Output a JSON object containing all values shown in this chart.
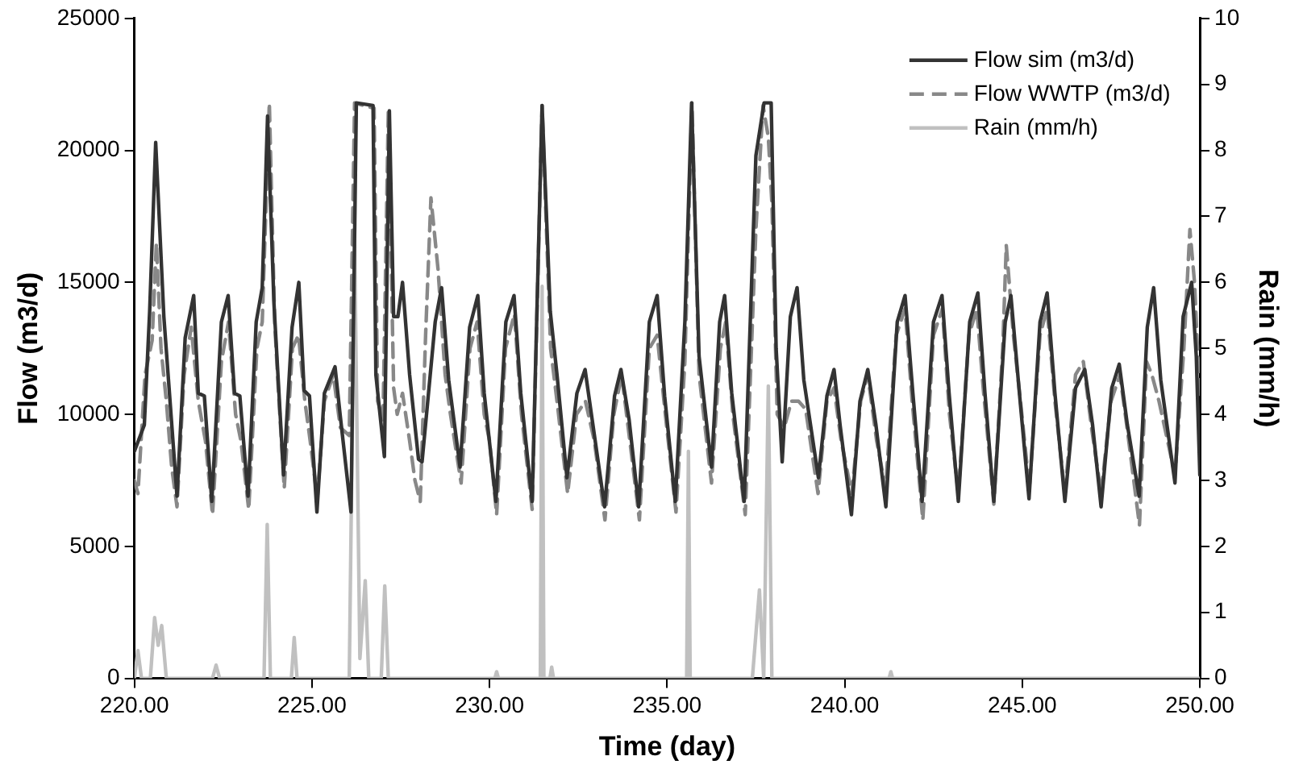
{
  "chart_data": {
    "type": "line",
    "xlabel": "Time (day)",
    "ylabel": "Flow (m3/d)",
    "y2label": "Rain (mm/h)",
    "xlim": [
      220,
      250
    ],
    "xticks": [
      {
        "value": 220,
        "label": "220.00"
      },
      {
        "value": 225,
        "label": "225.00"
      },
      {
        "value": 230,
        "label": "230.00"
      },
      {
        "value": 235,
        "label": "235.00"
      },
      {
        "value": 240,
        "label": "240.00"
      },
      {
        "value": 245,
        "label": "245.00"
      },
      {
        "value": 250,
        "label": "250.00"
      }
    ],
    "ylim": [
      0,
      25000
    ],
    "yticks": [
      0,
      5000,
      10000,
      15000,
      20000,
      25000
    ],
    "y2lim": [
      0,
      10
    ],
    "y2ticks": [
      0,
      1,
      2,
      3,
      4,
      5,
      6,
      7,
      8,
      9,
      10
    ],
    "grid": false,
    "legend": "top right",
    "marker": "none",
    "series": [
      {
        "name": "Flow sim (m3/d)",
        "color": "#333333",
        "line_style": "solid",
        "x": [
          220,
          220.28,
          220.43,
          220.6,
          220.83,
          221.2,
          221.43,
          221.67,
          221.8,
          221.97,
          222.18,
          222.45,
          222.64,
          222.82,
          222.97,
          223.2,
          223.43,
          223.6,
          223.75,
          223.93,
          224.2,
          224.44,
          224.63,
          224.78,
          224.93,
          225.14,
          225.35,
          225.65,
          225.8,
          226.1,
          226.25,
          226.72,
          226.8,
          227.04,
          227.18,
          227.3,
          227.42,
          227.55,
          227.75,
          228,
          228.1,
          228.47,
          228.65,
          228.85,
          229.17,
          229.44,
          229.67,
          229.85,
          230.18,
          230.46,
          230.69,
          230.88,
          231.2,
          231.48,
          231.71,
          231.9,
          232.18,
          232.46,
          232.69,
          232.89,
          233.24,
          233.52,
          233.7,
          233.93,
          234.2,
          234.5,
          234.72,
          234.93,
          235.23,
          235.5,
          235.69,
          235.9,
          236.25,
          236.48,
          236.62,
          236.82,
          237.17,
          237.5,
          237.73,
          237.93,
          238.07,
          238.24,
          238.47,
          238.66,
          238.85,
          239.26,
          239.5,
          239.7,
          239.87,
          240.19,
          240.43,
          240.65,
          240.88,
          241.16,
          241.48,
          241.7,
          241.92,
          242.18,
          242.5,
          242.74,
          242.94,
          243.2,
          243.52,
          243.75,
          243.95,
          244.2,
          244.52,
          244.68,
          244.92,
          245.19,
          245.5,
          245.7,
          245.92,
          246.2,
          246.5,
          246.76,
          246.98,
          247.22,
          247.52,
          247.73,
          247.96,
          248.29,
          248.52,
          248.7,
          248.9,
          249.3,
          249.53,
          249.77,
          249.9,
          250
        ],
        "values": [
          8600,
          9600,
          13900,
          20300,
          13700,
          6900,
          12900,
          14500,
          10800,
          10700,
          6700,
          13500,
          14500,
          10800,
          10700,
          6900,
          13500,
          14800,
          21300,
          14200,
          7700,
          13300,
          15000,
          10900,
          10700,
          6300,
          10800,
          11800,
          9900,
          6300,
          21800,
          21700,
          11500,
          8400,
          21500,
          13700,
          13700,
          15000,
          11500,
          8300,
          8200,
          13500,
          14800,
          11300,
          8000,
          13300,
          14500,
          10800,
          6700,
          13500,
          14500,
          10800,
          6700,
          21700,
          13900,
          11500,
          7600,
          10800,
          11700,
          9800,
          6500,
          10700,
          11700,
          9800,
          6500,
          13500,
          14500,
          10700,
          6700,
          13500,
          21800,
          12200,
          8000,
          13500,
          14500,
          10800,
          6700,
          19800,
          21800,
          21800,
          12500,
          8200,
          13700,
          14800,
          11300,
          7600,
          10700,
          11700,
          9600,
          6200,
          10500,
          11700,
          9600,
          6500,
          13500,
          14500,
          10800,
          6700,
          13500,
          14500,
          10800,
          6700,
          13500,
          14600,
          10800,
          6700,
          13500,
          14500,
          10800,
          6800,
          13500,
          14600,
          10800,
          6700,
          11000,
          11700,
          9600,
          6500,
          11000,
          11900,
          9600,
          6900,
          13300,
          14800,
          11300,
          7400,
          13700,
          15000,
          12200,
          7700
        ]
      },
      {
        "name": "Flow WWTP (m3/d)",
        "color": "#888888",
        "line_style": "dashed",
        "x": [
          220,
          220.1,
          220.3,
          220.5,
          220.62,
          220.75,
          220.9,
          221.05,
          221.2,
          221.4,
          221.6,
          221.8,
          222,
          222.2,
          222.45,
          222.65,
          222.85,
          223,
          223.22,
          223.45,
          223.6,
          223.8,
          223.95,
          224.05,
          224.22,
          224.45,
          224.62,
          224.8,
          224.95,
          225.15,
          225.35,
          225.6,
          225.8,
          226.05,
          226.2,
          226.45,
          226.75,
          226.85,
          227,
          227.15,
          227.3,
          227.4,
          227.55,
          227.75,
          227.9,
          228.05,
          228.2,
          228.35,
          228.55,
          228.75,
          228.9,
          229.2,
          229.45,
          229.65,
          229.85,
          230,
          230.2,
          230.45,
          230.7,
          230.9,
          231.2,
          231.48,
          231.72,
          231.9,
          232.2,
          232.45,
          232.7,
          232.95,
          233.25,
          233.5,
          233.72,
          233.95,
          234.22,
          234.5,
          234.72,
          234.95,
          235.25,
          235.5,
          235.7,
          235.9,
          236.25,
          236.5,
          236.65,
          236.85,
          237.2,
          237.5,
          237.7,
          237.85,
          237.95,
          238.1,
          238.3,
          238.5,
          238.7,
          238.9,
          239.25,
          239.5,
          239.7,
          239.9,
          240.2,
          240.45,
          240.65,
          240.9,
          241.15,
          241.45,
          241.7,
          241.9,
          242.2,
          242.5,
          242.75,
          242.95,
          243.2,
          243.5,
          243.72,
          243.9,
          244.2,
          244.45,
          244.55,
          244.75,
          244.95,
          245.2,
          245.5,
          245.7,
          245.92,
          246.2,
          246.5,
          246.72,
          246.95,
          247.22,
          247.5,
          247.75,
          247.95,
          248.3,
          248.5,
          248.65,
          248.85,
          249.3,
          249.55,
          249.72,
          249.85,
          250
        ],
        "values": [
          7500,
          7000,
          11500,
          12800,
          16500,
          12500,
          10500,
          8000,
          6500,
          11500,
          13300,
          10500,
          9000,
          6200,
          12000,
          13500,
          10000,
          9000,
          6400,
          12500,
          13500,
          21800,
          13500,
          11000,
          7200,
          12500,
          13000,
          10500,
          9000,
          6800,
          10500,
          11500,
          9500,
          9200,
          21800,
          21700,
          21600,
          10500,
          9800,
          21500,
          11000,
          10000,
          10800,
          9000,
          7500,
          6700,
          13000,
          18200,
          15500,
          11500,
          10000,
          7400,
          12500,
          13500,
          10000,
          9000,
          6200,
          12500,
          13800,
          10000,
          6400,
          21700,
          12500,
          10500,
          7000,
          10000,
          10500,
          9000,
          6000,
          10000,
          11500,
          9000,
          6000,
          12500,
          13000,
          10000,
          6300,
          12000,
          21800,
          11500,
          7400,
          12500,
          13500,
          10000,
          6200,
          17000,
          21700,
          20500,
          18000,
          10000,
          9500,
          10500,
          10500,
          10200,
          7000,
          10500,
          11000,
          9000,
          7000,
          10500,
          11500,
          9000,
          7200,
          13000,
          14000,
          10500,
          6000,
          13000,
          14000,
          10000,
          7000,
          13000,
          14000,
          11000,
          6600,
          12500,
          16400,
          13000,
          10500,
          7200,
          13000,
          14000,
          10500,
          7000,
          11500,
          12000,
          9500,
          7000,
          10500,
          11500,
          9500,
          5800,
          12000,
          11500,
          10500,
          7700,
          12500,
          17000,
          15000,
          10500
        ]
      },
      {
        "name": "Rain (mm/h)",
        "color": "#c0c0c0",
        "line_style": "solid",
        "axis": "y2",
        "x": [
          220,
          220.1,
          220.2,
          220.45,
          220.57,
          220.67,
          220.77,
          220.9,
          222.2,
          222.3,
          222.4,
          223.65,
          223.74,
          223.83,
          224.42,
          224.5,
          224.58,
          226.05,
          226.2,
          226.35,
          226.5,
          226.6,
          226.95,
          227.05,
          227.15,
          230.15,
          230.2,
          230.25,
          231.43,
          231.48,
          231.53,
          231.7,
          231.75,
          231.8,
          235.55,
          235.6,
          235.65,
          237.4,
          237.6,
          237.72,
          237.85,
          237.95,
          241.25,
          241.3,
          241.35,
          250
        ],
        "values": [
          0,
          0.42,
          0,
          0,
          0.92,
          0.5,
          0.8,
          0,
          0,
          0.2,
          0,
          0,
          2.33,
          0,
          0,
          0.62,
          0,
          0,
          6.65,
          0.3,
          1.48,
          0,
          0,
          1.4,
          0,
          0,
          0.1,
          0,
          0,
          5.94,
          0,
          0,
          0.17,
          0,
          0,
          3.44,
          0,
          0,
          1.34,
          0,
          4.43,
          0,
          0,
          0.1,
          0,
          0
        ]
      }
    ]
  }
}
